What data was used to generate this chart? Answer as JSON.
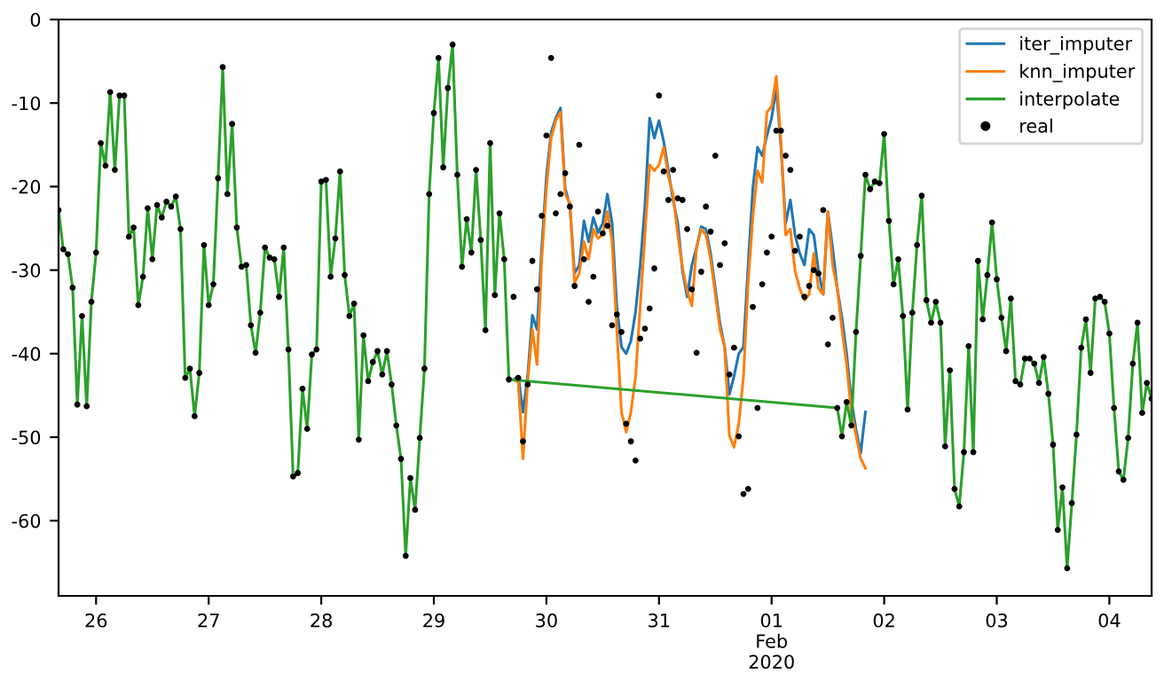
{
  "chart_data": {
    "type": "line",
    "x": [
      "2020-01-25T16:00",
      "2020-01-25T17:00",
      "2020-01-25T18:00",
      "2020-01-25T19:00",
      "2020-01-25T20:00",
      "2020-01-25T21:00",
      "2020-01-25T22:00",
      "2020-01-25T23:00",
      "2020-01-26T00:00",
      "2020-01-26T01:00",
      "2020-01-26T02:00",
      "2020-01-26T03:00",
      "2020-01-26T04:00",
      "2020-01-26T05:00",
      "2020-01-26T06:00",
      "2020-01-26T07:00",
      "2020-01-26T08:00",
      "2020-01-26T09:00",
      "2020-01-26T10:00",
      "2020-01-26T11:00",
      "2020-01-26T12:00",
      "2020-01-26T13:00",
      "2020-01-26T14:00",
      "2020-01-26T15:00",
      "2020-01-26T16:00",
      "2020-01-26T17:00",
      "2020-01-26T18:00",
      "2020-01-26T19:00",
      "2020-01-26T20:00",
      "2020-01-26T21:00",
      "2020-01-26T22:00",
      "2020-01-26T23:00",
      "2020-01-27T00:00",
      "2020-01-27T01:00",
      "2020-01-27T02:00",
      "2020-01-27T03:00",
      "2020-01-27T04:00",
      "2020-01-27T05:00",
      "2020-01-27T06:00",
      "2020-01-27T07:00",
      "2020-01-27T08:00",
      "2020-01-27T09:00",
      "2020-01-27T10:00",
      "2020-01-27T11:00",
      "2020-01-27T12:00",
      "2020-01-27T13:00",
      "2020-01-27T14:00",
      "2020-01-27T15:00",
      "2020-01-27T16:00",
      "2020-01-27T17:00",
      "2020-01-27T18:00",
      "2020-01-27T19:00",
      "2020-01-27T20:00",
      "2020-01-27T21:00",
      "2020-01-27T22:00",
      "2020-01-27T23:00",
      "2020-01-28T00:00",
      "2020-01-28T01:00",
      "2020-01-28T02:00",
      "2020-01-28T03:00",
      "2020-01-28T04:00",
      "2020-01-28T05:00",
      "2020-01-28T06:00",
      "2020-01-28T07:00",
      "2020-01-28T08:00",
      "2020-01-28T09:00",
      "2020-01-28T10:00",
      "2020-01-28T11:00",
      "2020-01-28T12:00",
      "2020-01-28T13:00",
      "2020-01-28T14:00",
      "2020-01-28T15:00",
      "2020-01-28T16:00",
      "2020-01-28T17:00",
      "2020-01-28T18:00",
      "2020-01-28T19:00",
      "2020-01-28T20:00",
      "2020-01-28T21:00",
      "2020-01-28T22:00",
      "2020-01-28T23:00",
      "2020-01-29T00:00",
      "2020-01-29T01:00",
      "2020-01-29T02:00",
      "2020-01-29T03:00",
      "2020-01-29T04:00",
      "2020-01-29T05:00",
      "2020-01-29T06:00",
      "2020-01-29T07:00",
      "2020-01-29T08:00",
      "2020-01-29T09:00",
      "2020-01-29T10:00",
      "2020-01-29T11:00",
      "2020-01-29T12:00",
      "2020-01-29T13:00",
      "2020-01-29T14:00",
      "2020-01-29T15:00",
      "2020-01-29T16:00",
      "2020-01-29T17:00",
      "2020-01-29T18:00",
      "2020-01-29T19:00",
      "2020-01-29T20:00",
      "2020-01-29T21:00",
      "2020-01-29T22:00",
      "2020-01-29T23:00",
      "2020-01-30T00:00",
      "2020-01-30T01:00",
      "2020-01-30T02:00",
      "2020-01-30T03:00",
      "2020-01-30T04:00",
      "2020-01-30T05:00",
      "2020-01-30T06:00",
      "2020-01-30T07:00",
      "2020-01-30T08:00",
      "2020-01-30T09:00",
      "2020-01-30T10:00",
      "2020-01-30T11:00",
      "2020-01-30T12:00",
      "2020-01-30T13:00",
      "2020-01-30T14:00",
      "2020-01-30T15:00",
      "2020-01-30T16:00",
      "2020-01-30T17:00",
      "2020-01-30T18:00",
      "2020-01-30T19:00",
      "2020-01-30T20:00",
      "2020-01-30T21:00",
      "2020-01-30T22:00",
      "2020-01-30T23:00",
      "2020-01-31T00:00",
      "2020-01-31T01:00",
      "2020-01-31T02:00",
      "2020-01-31T03:00",
      "2020-01-31T04:00",
      "2020-01-31T05:00",
      "2020-01-31T06:00",
      "2020-01-31T07:00",
      "2020-01-31T08:00",
      "2020-01-31T09:00",
      "2020-01-31T10:00",
      "2020-01-31T11:00",
      "2020-01-31T12:00",
      "2020-01-31T13:00",
      "2020-01-31T14:00",
      "2020-01-31T15:00",
      "2020-01-31T16:00",
      "2020-01-31T17:00",
      "2020-01-31T18:00",
      "2020-01-31T19:00",
      "2020-01-31T20:00",
      "2020-01-31T21:00",
      "2020-01-31T22:00",
      "2020-01-31T23:00",
      "2020-02-01T00:00",
      "2020-02-01T01:00",
      "2020-02-01T02:00",
      "2020-02-01T03:00",
      "2020-02-01T04:00",
      "2020-02-01T05:00",
      "2020-02-01T06:00",
      "2020-02-01T07:00",
      "2020-02-01T08:00",
      "2020-02-01T09:00",
      "2020-02-01T10:00",
      "2020-02-01T11:00",
      "2020-02-01T12:00",
      "2020-02-01T13:00",
      "2020-02-01T14:00",
      "2020-02-01T15:00",
      "2020-02-01T16:00",
      "2020-02-01T17:00",
      "2020-02-01T18:00",
      "2020-02-01T19:00",
      "2020-02-01T20:00",
      "2020-02-01T21:00",
      "2020-02-01T22:00",
      "2020-02-01T23:00",
      "2020-02-02T00:00",
      "2020-02-02T01:00",
      "2020-02-02T02:00",
      "2020-02-02T03:00",
      "2020-02-02T04:00",
      "2020-02-02T05:00",
      "2020-02-02T06:00",
      "2020-02-02T07:00",
      "2020-02-02T08:00",
      "2020-02-02T09:00",
      "2020-02-02T10:00",
      "2020-02-02T11:00",
      "2020-02-02T12:00",
      "2020-02-02T13:00",
      "2020-02-02T14:00",
      "2020-02-02T15:00",
      "2020-02-02T16:00",
      "2020-02-02T17:00",
      "2020-02-02T18:00",
      "2020-02-02T19:00",
      "2020-02-02T20:00",
      "2020-02-02T21:00",
      "2020-02-02T22:00",
      "2020-02-02T23:00",
      "2020-02-03T00:00",
      "2020-02-03T01:00",
      "2020-02-03T02:00",
      "2020-02-03T03:00",
      "2020-02-03T04:00",
      "2020-02-03T05:00",
      "2020-02-03T06:00",
      "2020-02-03T07:00",
      "2020-02-03T08:00",
      "2020-02-03T09:00",
      "2020-02-03T10:00",
      "2020-02-03T11:00",
      "2020-02-03T12:00",
      "2020-02-03T13:00",
      "2020-02-03T14:00",
      "2020-02-03T15:00",
      "2020-02-03T16:00",
      "2020-02-03T17:00",
      "2020-02-03T18:00",
      "2020-02-03T19:00",
      "2020-02-03T20:00",
      "2020-02-03T21:00",
      "2020-02-03T22:00",
      "2020-02-03T23:00",
      "2020-02-04T00:00",
      "2020-02-04T01:00",
      "2020-02-04T02:00",
      "2020-02-04T03:00",
      "2020-02-04T04:00",
      "2020-02-04T05:00",
      "2020-02-04T06:00",
      "2020-02-04T07:00",
      "2020-02-04T08:00",
      "2020-02-04T09:00"
    ],
    "series": [
      {
        "name": "iter_imputer",
        "color": "#1f77b4",
        "marker": "none",
        "x": [
          "2020-01-29T17:00",
          "2020-01-29T18:00",
          "2020-01-29T19:00",
          "2020-01-29T20:00",
          "2020-01-29T21:00",
          "2020-01-29T22:00",
          "2020-01-29T23:00",
          "2020-01-30T00:00",
          "2020-01-30T01:00",
          "2020-01-30T02:00",
          "2020-01-30T03:00",
          "2020-01-30T04:00",
          "2020-01-30T05:00",
          "2020-01-30T06:00",
          "2020-01-30T07:00",
          "2020-01-30T08:00",
          "2020-01-30T09:00",
          "2020-01-30T10:00",
          "2020-01-30T11:00",
          "2020-01-30T12:00",
          "2020-01-30T13:00",
          "2020-01-30T14:00",
          "2020-01-30T15:00",
          "2020-01-30T16:00",
          "2020-01-30T17:00",
          "2020-01-30T18:00",
          "2020-01-30T19:00",
          "2020-01-30T20:00",
          "2020-01-30T21:00",
          "2020-01-30T22:00",
          "2020-01-30T23:00",
          "2020-01-31T00:00",
          "2020-01-31T01:00",
          "2020-01-31T02:00",
          "2020-01-31T03:00",
          "2020-01-31T04:00",
          "2020-01-31T05:00",
          "2020-01-31T06:00",
          "2020-01-31T07:00",
          "2020-01-31T08:00",
          "2020-01-31T09:00",
          "2020-01-31T10:00",
          "2020-01-31T11:00",
          "2020-01-31T12:00",
          "2020-01-31T13:00",
          "2020-01-31T14:00",
          "2020-01-31T15:00",
          "2020-01-31T16:00",
          "2020-01-31T17:00",
          "2020-01-31T18:00",
          "2020-01-31T19:00",
          "2020-01-31T20:00",
          "2020-01-31T21:00",
          "2020-01-31T22:00",
          "2020-01-31T23:00",
          "2020-02-01T00:00",
          "2020-02-01T01:00",
          "2020-02-01T02:00",
          "2020-02-01T03:00",
          "2020-02-01T04:00",
          "2020-02-01T05:00",
          "2020-02-01T06:00",
          "2020-02-01T07:00",
          "2020-02-01T08:00",
          "2020-02-01T09:00",
          "2020-02-01T10:00",
          "2020-02-01T11:00",
          "2020-02-01T12:00",
          "2020-02-01T13:00",
          "2020-02-01T14:00",
          "2020-02-01T15:00",
          "2020-02-01T16:00",
          "2020-02-01T17:00",
          "2020-02-01T18:00",
          "2020-02-01T19:00",
          "2020-02-01T20:00"
        ],
        "values": [
          -43.1,
          -42.7,
          -47.0,
          -42.7,
          -35.4,
          -37.1,
          -27.3,
          -18.8,
          -13.5,
          -11.8,
          -10.6,
          -20.2,
          -22.3,
          -30.4,
          -29.4,
          -24.1,
          -26.6,
          -23.7,
          -25.5,
          -24.4,
          -20.9,
          -24.4,
          -34.3,
          -39.2,
          -40.0,
          -38.5,
          -35.0,
          -29.4,
          -22.3,
          -11.8,
          -14.2,
          -12.1,
          -14.6,
          -18.1,
          -21.6,
          -24.4,
          -30.1,
          -33.2,
          -29.4,
          -27.3,
          -24.8,
          -25.1,
          -28.0,
          -32.2,
          -36.4,
          -39.2,
          -44.9,
          -42.7,
          -40.0,
          -39.2,
          -29.4,
          -20.2,
          -15.3,
          -16.3,
          -13.9,
          -11.8,
          -8.2,
          -15.3,
          -24.4,
          -21.6,
          -25.8,
          -28.0,
          -29.4,
          -25.1,
          -25.8,
          -30.1,
          -32.9,
          -23.0,
          -27.3,
          -32.2,
          -35.7,
          -40.0,
          -45.6,
          -49.1,
          -51.9,
          -47.0
        ]
      },
      {
        "name": "knn_imputer",
        "color": "#ff7f0e",
        "marker": "none",
        "x": [
          "2020-01-29T17:00",
          "2020-01-29T18:00",
          "2020-01-29T19:00",
          "2020-01-29T20:00",
          "2020-01-29T21:00",
          "2020-01-29T22:00",
          "2020-01-29T23:00",
          "2020-01-30T00:00",
          "2020-01-30T01:00",
          "2020-01-30T02:00",
          "2020-01-30T03:00",
          "2020-01-30T04:00",
          "2020-01-30T05:00",
          "2020-01-30T06:00",
          "2020-01-30T07:00",
          "2020-01-30T08:00",
          "2020-01-30T09:00",
          "2020-01-30T10:00",
          "2020-01-30T11:00",
          "2020-01-30T12:00",
          "2020-01-30T13:00",
          "2020-01-30T14:00",
          "2020-01-30T15:00",
          "2020-01-30T16:00",
          "2020-01-30T17:00",
          "2020-01-30T18:00",
          "2020-01-30T19:00",
          "2020-01-30T20:00",
          "2020-01-30T21:00",
          "2020-01-30T22:00",
          "2020-01-30T23:00",
          "2020-01-31T00:00",
          "2020-01-31T01:00",
          "2020-01-31T02:00",
          "2020-01-31T03:00",
          "2020-01-31T04:00",
          "2020-01-31T05:00",
          "2020-01-31T06:00",
          "2020-01-31T07:00",
          "2020-01-31T08:00",
          "2020-01-31T09:00",
          "2020-01-31T10:00",
          "2020-01-31T11:00",
          "2020-01-31T12:00",
          "2020-01-31T13:00",
          "2020-01-31T14:00",
          "2020-01-31T15:00",
          "2020-01-31T16:00",
          "2020-01-31T17:00",
          "2020-01-31T18:00",
          "2020-01-31T19:00",
          "2020-01-31T20:00",
          "2020-01-31T21:00",
          "2020-01-31T22:00",
          "2020-01-31T23:00",
          "2020-02-01T00:00",
          "2020-02-01T01:00",
          "2020-02-01T02:00",
          "2020-02-01T03:00",
          "2020-02-01T04:00",
          "2020-02-01T05:00",
          "2020-02-01T06:00",
          "2020-02-01T07:00",
          "2020-02-01T08:00",
          "2020-02-01T09:00",
          "2020-02-01T10:00",
          "2020-02-01T11:00",
          "2020-02-01T12:00",
          "2020-02-01T13:00",
          "2020-02-01T14:00",
          "2020-02-01T15:00",
          "2020-02-01T16:00",
          "2020-02-01T17:00",
          "2020-02-01T18:00",
          "2020-02-01T19:00",
          "2020-02-01T20:00"
        ],
        "values": [
          -43.1,
          -43.4,
          -52.6,
          -43.4,
          -37.1,
          -41.3,
          -28.7,
          -20.2,
          -14.2,
          -12.1,
          -11.1,
          -20.9,
          -22.0,
          -31.5,
          -30.4,
          -26.6,
          -28.7,
          -25.1,
          -26.2,
          -25.8,
          -23.0,
          -26.6,
          -37.1,
          -47.0,
          -49.4,
          -47.0,
          -42.8,
          -34.3,
          -25.8,
          -17.4,
          -18.1,
          -17.4,
          -15.3,
          -18.8,
          -20.9,
          -25.8,
          -29.7,
          -32.5,
          -34.3,
          -27.3,
          -25.1,
          -25.8,
          -28.7,
          -32.9,
          -37.1,
          -39.2,
          -49.8,
          -51.2,
          -48.4,
          -42.8,
          -31.5,
          -23.7,
          -18.1,
          -19.5,
          -11.1,
          -10.4,
          -6.8,
          -14.6,
          -25.8,
          -25.1,
          -30.1,
          -32.2,
          -33.6,
          -32.9,
          -28.0,
          -32.2,
          -32.9,
          -23.0,
          -29.4,
          -32.2,
          -37.1,
          -41.3,
          -47.0,
          -49.8,
          -52.6,
          -53.7
        ]
      },
      {
        "name": "interpolate",
        "color": "#2ca02c",
        "marker": "none",
        "x": [
          "2020-01-25T16:00",
          "2020-01-25T17:00",
          "2020-01-25T18:00",
          "2020-01-25T19:00",
          "2020-01-25T20:00",
          "2020-01-25T21:00",
          "2020-01-25T22:00",
          "2020-01-25T23:00",
          "2020-01-26T00:00",
          "2020-01-26T01:00",
          "2020-01-26T02:00",
          "2020-01-26T03:00",
          "2020-01-26T04:00",
          "2020-01-26T05:00",
          "2020-01-26T06:00",
          "2020-01-26T07:00",
          "2020-01-26T08:00",
          "2020-01-26T09:00",
          "2020-01-26T10:00",
          "2020-01-26T11:00",
          "2020-01-26T12:00",
          "2020-01-26T13:00",
          "2020-01-26T14:00",
          "2020-01-26T15:00",
          "2020-01-26T16:00",
          "2020-01-26T17:00",
          "2020-01-26T18:00",
          "2020-01-26T19:00",
          "2020-01-26T20:00",
          "2020-01-26T21:00",
          "2020-01-26T22:00",
          "2020-01-26T23:00",
          "2020-01-27T00:00",
          "2020-01-27T01:00",
          "2020-01-27T02:00",
          "2020-01-27T03:00",
          "2020-01-27T04:00",
          "2020-01-27T05:00",
          "2020-01-27T06:00",
          "2020-01-27T07:00",
          "2020-01-27T08:00",
          "2020-01-27T09:00",
          "2020-01-27T10:00",
          "2020-01-27T11:00",
          "2020-01-27T12:00",
          "2020-01-27T13:00",
          "2020-01-27T14:00",
          "2020-01-27T15:00",
          "2020-01-27T16:00",
          "2020-01-27T17:00",
          "2020-01-27T18:00",
          "2020-01-27T19:00",
          "2020-01-27T20:00",
          "2020-01-27T21:00",
          "2020-01-27T22:00",
          "2020-01-27T23:00",
          "2020-01-28T00:00",
          "2020-01-28T01:00",
          "2020-01-28T02:00",
          "2020-01-28T03:00",
          "2020-01-28T04:00",
          "2020-01-28T05:00",
          "2020-01-28T06:00",
          "2020-01-28T07:00",
          "2020-01-28T08:00",
          "2020-01-28T09:00",
          "2020-01-28T10:00",
          "2020-01-28T11:00",
          "2020-01-28T12:00",
          "2020-01-28T13:00",
          "2020-01-28T14:00",
          "2020-01-28T15:00",
          "2020-01-28T16:00",
          "2020-01-28T17:00",
          "2020-01-28T18:00",
          "2020-01-28T19:00",
          "2020-01-28T20:00",
          "2020-01-28T21:00",
          "2020-01-28T22:00",
          "2020-01-28T23:00",
          "2020-01-29T00:00",
          "2020-01-29T01:00",
          "2020-01-29T02:00",
          "2020-01-29T03:00",
          "2020-01-29T04:00",
          "2020-01-29T05:00",
          "2020-01-29T06:00",
          "2020-01-29T07:00",
          "2020-01-29T08:00",
          "2020-01-29T09:00",
          "2020-01-29T10:00",
          "2020-01-29T11:00",
          "2020-01-29T12:00",
          "2020-01-29T13:00",
          "2020-01-29T14:00",
          "2020-01-29T15:00",
          "2020-01-29T16:00",
          "2020-02-01T14:00",
          "2020-02-01T15:00",
          "2020-02-01T16:00",
          "2020-02-01T17:00",
          "2020-02-01T18:00",
          "2020-02-01T19:00",
          "2020-02-01T20:00",
          "2020-02-01T21:00",
          "2020-02-01T22:00",
          "2020-02-01T23:00",
          "2020-02-02T00:00",
          "2020-02-02T01:00",
          "2020-02-02T02:00",
          "2020-02-02T03:00",
          "2020-02-02T04:00",
          "2020-02-02T05:00",
          "2020-02-02T06:00",
          "2020-02-02T07:00",
          "2020-02-02T08:00",
          "2020-02-02T09:00",
          "2020-02-02T10:00",
          "2020-02-02T11:00",
          "2020-02-02T12:00",
          "2020-02-02T13:00",
          "2020-02-02T14:00",
          "2020-02-02T15:00",
          "2020-02-02T16:00",
          "2020-02-02T17:00",
          "2020-02-02T18:00",
          "2020-02-02T19:00",
          "2020-02-02T20:00",
          "2020-02-02T21:00",
          "2020-02-02T22:00",
          "2020-02-02T23:00",
          "2020-02-03T00:00",
          "2020-02-03T01:00",
          "2020-02-03T02:00",
          "2020-02-03T03:00",
          "2020-02-03T04:00",
          "2020-02-03T05:00",
          "2020-02-03T06:00",
          "2020-02-03T07:00",
          "2020-02-03T08:00",
          "2020-02-03T09:00",
          "2020-02-03T10:00",
          "2020-02-03T11:00",
          "2020-02-03T12:00",
          "2020-02-03T13:00",
          "2020-02-03T14:00",
          "2020-02-03T15:00",
          "2020-02-03T16:00",
          "2020-02-03T17:00",
          "2020-02-03T18:00",
          "2020-02-03T19:00",
          "2020-02-03T20:00",
          "2020-02-03T21:00",
          "2020-02-03T22:00",
          "2020-02-03T23:00",
          "2020-02-04T00:00",
          "2020-02-04T01:00",
          "2020-02-04T02:00",
          "2020-02-04T03:00",
          "2020-02-04T04:00",
          "2020-02-04T05:00",
          "2020-02-04T06:00",
          "2020-02-04T07:00",
          "2020-02-04T08:00",
          "2020-02-04T09:00"
        ],
        "values": [
          -22.8,
          -27.5,
          -28.1,
          -32.1,
          -46.1,
          -35.5,
          -46.3,
          -33.8,
          -27.9,
          -14.8,
          -17.5,
          -8.7,
          -18.0,
          -9.1,
          -9.1,
          -26.0,
          -24.9,
          -34.2,
          -30.8,
          -22.6,
          -28.7,
          -22.2,
          -23.7,
          -21.8,
          -22.4,
          -21.2,
          -25.1,
          -42.9,
          -41.8,
          -47.5,
          -42.3,
          -27.0,
          -34.2,
          -31.7,
          -19.0,
          -5.7,
          -20.9,
          -12.5,
          -24.9,
          -29.6,
          -29.4,
          -36.6,
          -39.9,
          -35.1,
          -27.3,
          -28.5,
          -28.7,
          -33.2,
          -27.3,
          -39.5,
          -54.7,
          -54.3,
          -44.2,
          -49.0,
          -40.1,
          -39.5,
          -19.4,
          -19.2,
          -30.8,
          -26.2,
          -18.2,
          -30.6,
          -35.5,
          -34.0,
          -50.3,
          -37.8,
          -43.3,
          -41.0,
          -39.7,
          -42.5,
          -39.7,
          -43.7,
          -48.6,
          -52.6,
          -64.2,
          -54.9,
          -58.7,
          -50.1,
          -41.8,
          -20.9,
          -11.2,
          -4.6,
          -17.7,
          -8.2,
          -3.0,
          -18.6,
          -29.6,
          -23.9,
          -27.9,
          -18.0,
          -26.4,
          -37.2,
          -14.8,
          -33.0,
          -23.2,
          -28.7,
          -43.1,
          -46.5,
          -49.9,
          -45.8,
          -48.6,
          -37.4,
          -28.3,
          -18.6,
          -20.3,
          -19.4,
          -19.6,
          -13.7,
          -24.1,
          -31.7,
          -28.7,
          -35.5,
          -46.7,
          -35.1,
          -27.0,
          -21.1,
          -33.6,
          -36.3,
          -33.8,
          -36.3,
          -51.1,
          -42.0,
          -56.2,
          -58.3,
          -51.8,
          -39.1,
          -51.8,
          -28.9,
          -35.9,
          -30.6,
          -24.3,
          -31.1,
          -35.7,
          -39.7,
          -33.4,
          -43.3,
          -43.7,
          -40.6,
          -40.6,
          -41.2,
          -43.5,
          -40.4,
          -44.8,
          -50.9,
          -61.1,
          -56.0,
          -65.7,
          -57.9,
          -49.7,
          -39.3,
          -35.9,
          -42.3,
          -33.4,
          -33.2,
          -33.8,
          -37.6,
          -46.5,
          -54.1,
          -55.1,
          -50.1,
          -41.2,
          -36.3,
          -47.1,
          -43.5,
          -45.4
        ]
      },
      {
        "name": "real",
        "color": "#000000",
        "type": "scatter",
        "marker": "circle",
        "values": [
          -22.8,
          -27.5,
          -28.1,
          -32.1,
          -46.1,
          -35.5,
          -46.3,
          -33.8,
          -27.9,
          -14.8,
          -17.5,
          -8.7,
          -18.0,
          -9.1,
          -9.1,
          -26.0,
          -24.9,
          -34.2,
          -30.8,
          -22.6,
          -28.7,
          -22.2,
          -23.7,
          -21.8,
          -22.4,
          -21.2,
          -25.1,
          -42.9,
          -41.8,
          -47.5,
          -42.3,
          -27.0,
          -34.2,
          -31.7,
          -19.0,
          -5.7,
          -20.9,
          -12.5,
          -24.9,
          -29.6,
          -29.4,
          -36.6,
          -39.9,
          -35.1,
          -27.3,
          -28.5,
          -28.7,
          -33.2,
          -27.3,
          -39.5,
          -54.7,
          -54.3,
          -44.2,
          -49.0,
          -40.1,
          -39.5,
          -19.4,
          -19.2,
          -30.8,
          -26.2,
          -18.2,
          -30.6,
          -35.5,
          -34.0,
          -50.3,
          -37.8,
          -43.3,
          -41.0,
          -39.7,
          -42.5,
          -39.7,
          -43.7,
          -48.6,
          -52.6,
          -64.2,
          -54.9,
          -58.7,
          -50.1,
          -41.8,
          -20.9,
          -11.2,
          -4.6,
          -17.7,
          -8.2,
          -3.0,
          -18.6,
          -29.6,
          -23.9,
          -27.9,
          -18.0,
          -26.4,
          -37.2,
          -14.8,
          -33.0,
          -23.2,
          -28.7,
          -43.1,
          -33.2,
          -42.9,
          -50.5,
          -43.7,
          -28.9,
          -32.3,
          -23.5,
          -13.9,
          -4.6,
          -23.2,
          -20.9,
          -18.4,
          -22.4,
          -31.9,
          -15.0,
          -28.7,
          -33.8,
          -30.8,
          -23.0,
          -25.6,
          -24.7,
          -36.6,
          -35.3,
          -37.4,
          -48.4,
          -50.5,
          -52.8,
          -38.2,
          -37.0,
          -34.6,
          -29.8,
          -9.1,
          -18.2,
          -21.6,
          -18.0,
          -21.4,
          -21.6,
          -25.1,
          -32.3,
          -39.9,
          -30.2,
          -22.4,
          -25.4,
          -16.3,
          -29.4,
          -26.8,
          -42.5,
          -39.3,
          -49.9,
          -56.8,
          -56.2,
          -34.4,
          -46.5,
          -31.7,
          -27.9,
          -26.0,
          -13.3,
          -13.3,
          -16.3,
          -18.0,
          -27.7,
          -26.0,
          -33.2,
          -31.9,
          -30.0,
          -30.4,
          -22.8,
          -38.9,
          -35.7,
          -46.5,
          -49.9,
          -45.8,
          -48.6,
          -37.4,
          -28.3,
          -18.6,
          -20.3,
          -19.4,
          -19.6,
          -13.7,
          -24.1,
          -31.7,
          -28.7,
          -35.5,
          -46.7,
          -35.1,
          -27.0,
          -21.1,
          -33.6,
          -36.3,
          -33.8,
          -36.3,
          -51.1,
          -42.0,
          -56.2,
          -58.3,
          -51.8,
          -39.1,
          -51.8,
          -28.9,
          -35.9,
          -30.6,
          -24.3,
          -31.1,
          -35.7,
          -39.7,
          -33.4,
          -43.3,
          -43.7,
          -40.6,
          -40.6,
          -41.2,
          -43.5,
          -40.4,
          -44.8,
          -50.9,
          -61.1,
          -56.0,
          -65.7,
          -57.9,
          -49.7,
          -39.3,
          -35.9,
          -42.3,
          -33.4,
          -33.2,
          -33.8,
          -37.6,
          -46.5,
          -54.1,
          -55.1,
          -50.1,
          -41.2,
          -36.3,
          -47.1,
          -43.5,
          -45.4
        ]
      }
    ],
    "xlim": [
      "2020-01-25T16:00",
      "2020-02-04T09:00"
    ],
    "xticks": [
      {
        "value": "2020-01-26",
        "label": "26"
      },
      {
        "value": "2020-01-27",
        "label": "27"
      },
      {
        "value": "2020-01-28",
        "label": "28"
      },
      {
        "value": "2020-01-29",
        "label": "29"
      },
      {
        "value": "2020-01-30",
        "label": "30"
      },
      {
        "value": "2020-01-31",
        "label": "31"
      },
      {
        "value": "2020-02-01",
        "label": "01\nFeb\n2020"
      },
      {
        "value": "2020-02-02",
        "label": "02"
      },
      {
        "value": "2020-02-03",
        "label": "03"
      },
      {
        "value": "2020-02-04",
        "label": "04"
      }
    ],
    "ylim": [
      -69,
      0
    ],
    "yticks": [
      -60,
      -50,
      -40,
      -30,
      -20,
      -10,
      0
    ],
    "legend": "top right"
  }
}
